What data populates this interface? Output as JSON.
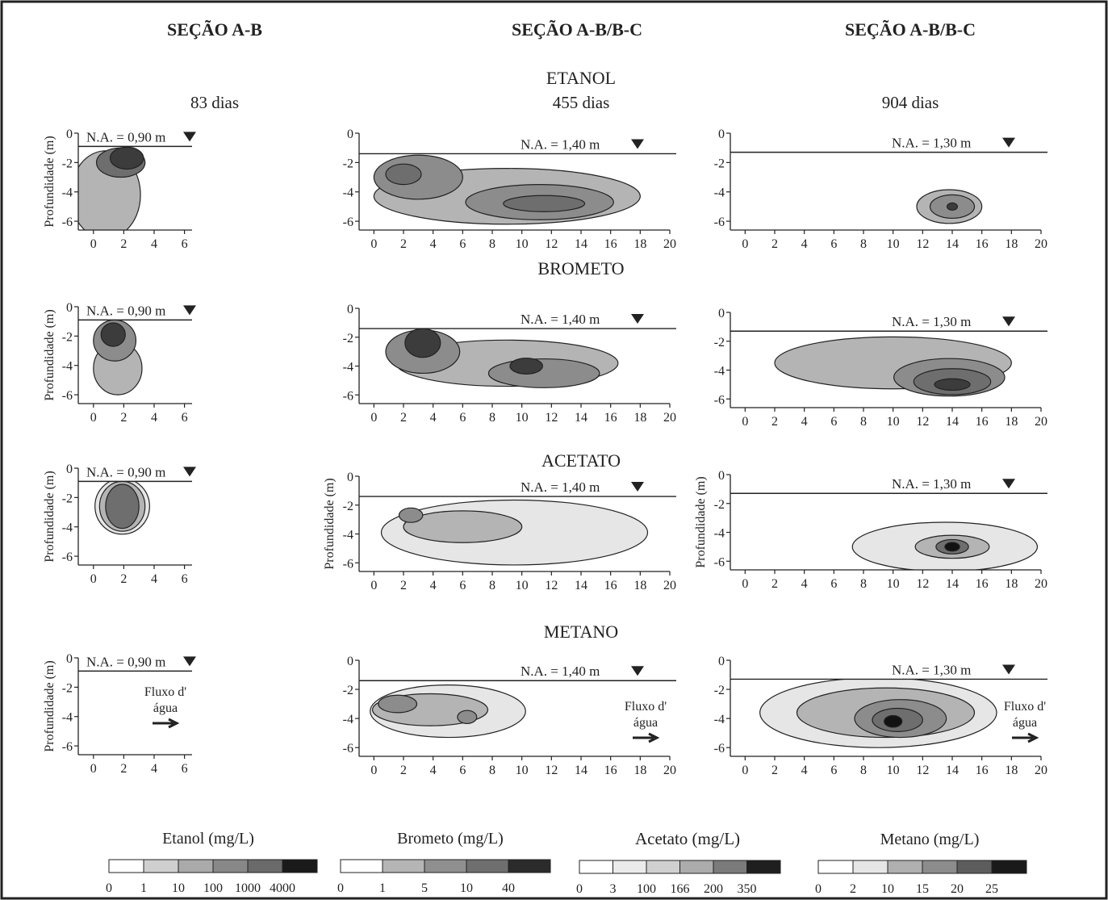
{
  "headers": {
    "col1": "SEÇÃO A-B",
    "col2": "SEÇÃO A-B/B-C",
    "col3": "SEÇÃO A-B/B-C"
  },
  "days": {
    "col1": "83 dias",
    "col2": "455 dias",
    "col3": "904 dias"
  },
  "row_titles": [
    "ETANOL",
    "BROMETO",
    "ACETATO",
    "METANO"
  ],
  "ylabel": "Profundidade (m)",
  "yticks": [
    "0",
    "-2",
    "-4",
    "-6"
  ],
  "xticks_small": [
    "0",
    "2",
    "4",
    "6"
  ],
  "xticks_large": [
    "0",
    "2",
    "4",
    "6",
    "8",
    "10",
    "12",
    "14",
    "16",
    "18",
    "20"
  ],
  "water_levels": {
    "col1": "N.A. = 0,90 m",
    "col2": "N.A. = 1,40 m",
    "col3": "N.A. = 1,30 m"
  },
  "flow_label": [
    "Fluxo d'",
    "água"
  ],
  "colors": {
    "c1": "#e6e6e6",
    "c2": "#b4b4b4",
    "c3": "#8c8c8c",
    "c4": "#6e6e6e",
    "c5": "#3c3c3c",
    "c6": "#121212"
  },
  "legends": [
    {
      "title": "Etanol (mg/L)",
      "ticks": [
        "0",
        "1",
        "10",
        "100",
        "1000",
        "4000"
      ],
      "fills": [
        "#ffffff",
        "#cfcfcf",
        "#aaaaaa",
        "#888888",
        "#6a6a6a",
        "#1a1a1a"
      ]
    },
    {
      "title": "Brometo (mg/L)",
      "ticks": [
        "0",
        "1",
        "5",
        "10",
        "40"
      ],
      "fills": [
        "#ffffff",
        "#b5b5b5",
        "#8f8f8f",
        "#6f6f6f",
        "#2b2b2b"
      ]
    },
    {
      "title": "Acetato (mg/L)",
      "ticks": [
        "0",
        "3",
        "100",
        "166",
        "200",
        "350"
      ],
      "fills": [
        "#ffffff",
        "#ebebeb",
        "#d0d0d0",
        "#acacac",
        "#7b7b7b",
        "#1f1f1f"
      ]
    },
    {
      "title": "Metano (mg/L)",
      "ticks": [
        "0",
        "2",
        "10",
        "15",
        "20",
        "25"
      ],
      "fills": [
        "#ffffff",
        "#e6e6e6",
        "#b0b0b0",
        "#8c8c8c",
        "#5d5d5d",
        "#1a1a1a"
      ]
    }
  ],
  "chart_data": {
    "type": "contour",
    "panels": [
      {
        "row": "ETANOL",
        "col": 1,
        "days": 83,
        "water_level_m": -0.9,
        "plumes": [
          {
            "level": 2,
            "x": 0.8,
            "y": -4.2,
            "w": 4.6,
            "h": 6.0
          },
          {
            "level": 4,
            "x": 1.8,
            "y": -2.0,
            "w": 3.2,
            "h": 2.0
          },
          {
            "level": 5,
            "x": 2.2,
            "y": -1.7,
            "w": 2.2,
            "h": 1.5
          }
        ]
      },
      {
        "row": "ETANOL",
        "col": 2,
        "days": 455,
        "water_level_m": -1.4,
        "plumes": [
          {
            "level": 2,
            "x": 9.0,
            "y": -4.3,
            "w": 18.0,
            "h": 3.8
          },
          {
            "level": 3,
            "x": 3.0,
            "y": -3.0,
            "w": 6.0,
            "h": 3.0
          },
          {
            "level": 3,
            "x": 11.2,
            "y": -4.7,
            "w": 10.0,
            "h": 2.4
          },
          {
            "level": 4,
            "x": 2.0,
            "y": -2.8,
            "w": 2.4,
            "h": 1.4
          },
          {
            "level": 4,
            "x": 11.5,
            "y": -4.8,
            "w": 5.5,
            "h": 1.1
          }
        ]
      },
      {
        "row": "ETANOL",
        "col": 3,
        "days": 904,
        "water_level_m": -1.3,
        "plumes": [
          {
            "level": 2,
            "x": 13.8,
            "y": -5.0,
            "w": 4.4,
            "h": 2.3
          },
          {
            "level": 3,
            "x": 14.0,
            "y": -5.0,
            "w": 3.0,
            "h": 1.6
          },
          {
            "level": 5,
            "x": 14.0,
            "y": -5.0,
            "w": 0.7,
            "h": 0.5
          }
        ]
      },
      {
        "row": "BROMETO",
        "col": 1,
        "days": 83,
        "water_level_m": -0.9,
        "plumes": [
          {
            "level": 2,
            "x": 1.6,
            "y": -4.2,
            "w": 3.2,
            "h": 3.6
          },
          {
            "level": 3,
            "x": 1.4,
            "y": -2.3,
            "w": 2.8,
            "h": 2.8
          },
          {
            "level": 5,
            "x": 1.3,
            "y": -1.9,
            "w": 1.6,
            "h": 1.6
          }
        ]
      },
      {
        "row": "BROMETO",
        "col": 2,
        "days": 455,
        "water_level_m": -1.4,
        "plumes": [
          {
            "level": 2,
            "x": 9.0,
            "y": -3.8,
            "w": 15.0,
            "h": 3.2
          },
          {
            "level": 3,
            "x": 3.3,
            "y": -3.0,
            "w": 5.0,
            "h": 3.0
          },
          {
            "level": 3,
            "x": 11.5,
            "y": -4.5,
            "w": 7.5,
            "h": 2.0
          },
          {
            "level": 5,
            "x": 3.3,
            "y": -2.4,
            "w": 2.4,
            "h": 2.0
          },
          {
            "level": 5,
            "x": 10.3,
            "y": -4.0,
            "w": 2.2,
            "h": 1.1
          }
        ]
      },
      {
        "row": "BROMETO",
        "col": 3,
        "days": 904,
        "water_level_m": -1.3,
        "plumes": [
          {
            "level": 2,
            "x": 10.0,
            "y": -3.5,
            "w": 16.0,
            "h": 3.6
          },
          {
            "level": 3,
            "x": 13.8,
            "y": -4.5,
            "w": 7.5,
            "h": 2.6
          },
          {
            "level": 4,
            "x": 14.0,
            "y": -4.8,
            "w": 5.2,
            "h": 1.8
          },
          {
            "level": 5,
            "x": 14.0,
            "y": -5.0,
            "w": 2.4,
            "h": 0.8
          }
        ]
      },
      {
        "row": "ACETATO",
        "col": 1,
        "days": 83,
        "water_level_m": -0.9,
        "plumes": [
          {
            "level": 1,
            "x": 1.9,
            "y": -2.6,
            "w": 3.6,
            "h": 3.8
          },
          {
            "level": 2,
            "x": 1.9,
            "y": -2.6,
            "w": 3.0,
            "h": 3.4
          },
          {
            "level": 4,
            "x": 1.9,
            "y": -2.6,
            "w": 2.2,
            "h": 3.0
          }
        ]
      },
      {
        "row": "ACETATO",
        "col": 2,
        "days": 455,
        "water_level_m": -1.4,
        "plumes": [
          {
            "level": 1,
            "x": 9.5,
            "y": -3.9,
            "w": 18.0,
            "h": 4.5
          },
          {
            "level": 2,
            "x": 6.0,
            "y": -3.5,
            "w": 8.0,
            "h": 2.2
          },
          {
            "level": 3,
            "x": 2.5,
            "y": -2.7,
            "w": 1.6,
            "h": 1.0
          }
        ]
      },
      {
        "row": "ACETATO",
        "col": 3,
        "days": 904,
        "water_level_m": -1.3,
        "plumes": [
          {
            "level": 1,
            "x": 13.5,
            "y": -5.0,
            "w": 12.5,
            "h": 3.4
          },
          {
            "level": 2,
            "x": 14.0,
            "y": -5.0,
            "w": 5.0,
            "h": 1.6
          },
          {
            "level": 4,
            "x": 14.0,
            "y": -5.0,
            "w": 2.2,
            "h": 1.0
          },
          {
            "level": 6,
            "x": 14.0,
            "y": -5.0,
            "w": 1.0,
            "h": 0.6
          }
        ]
      },
      {
        "row": "METANO",
        "col": 1,
        "days": 83,
        "water_level_m": -0.9,
        "plumes": []
      },
      {
        "row": "METANO",
        "col": 2,
        "days": 455,
        "water_level_m": -1.4,
        "plumes": [
          {
            "level": 1,
            "x": 5.0,
            "y": -3.5,
            "w": 10.5,
            "h": 3.6
          },
          {
            "level": 2,
            "x": 3.8,
            "y": -3.4,
            "w": 7.8,
            "h": 2.2
          },
          {
            "level": 3,
            "x": 1.6,
            "y": -3.0,
            "w": 2.6,
            "h": 1.2
          },
          {
            "level": 3,
            "x": 6.3,
            "y": -3.9,
            "w": 1.3,
            "h": 0.9
          }
        ]
      },
      {
        "row": "METANO",
        "col": 3,
        "days": 904,
        "water_level_m": -1.3,
        "plumes": [
          {
            "level": 1,
            "x": 9.0,
            "y": -3.6,
            "w": 16.0,
            "h": 4.8
          },
          {
            "level": 2,
            "x": 9.5,
            "y": -3.6,
            "w": 12.0,
            "h": 3.4
          },
          {
            "level": 3,
            "x": 10.5,
            "y": -4.0,
            "w": 6.2,
            "h": 2.6
          },
          {
            "level": 4,
            "x": 10.3,
            "y": -4.1,
            "w": 3.4,
            "h": 1.6
          },
          {
            "level": 6,
            "x": 10.0,
            "y": -4.2,
            "w": 1.2,
            "h": 0.8
          }
        ]
      }
    ],
    "xlim_col1": [
      -1,
      6.5
    ],
    "xlim": [
      -1,
      20
    ],
    "ylim": [
      -6.6,
      0
    ]
  }
}
